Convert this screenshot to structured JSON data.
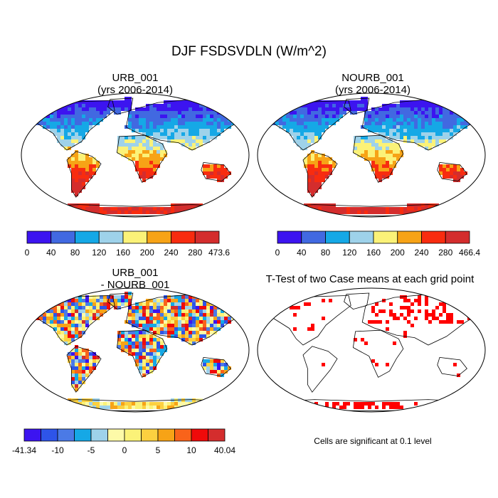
{
  "page_title": "DJF FSDSVDLN (W/m^2)",
  "footnote": "Cells are significant at 0.1 level",
  "chart_data": [
    {
      "type": "heatmap",
      "title": "URB_001",
      "subtitle": "(yrs 2006-2014)",
      "colorbar": {
        "labels": [
          "0",
          "40",
          "80",
          "120",
          "160",
          "200",
          "240",
          "280",
          "473.6"
        ],
        "colors": [
          "#3c14f0",
          "#4169e1",
          "#15a8e6",
          "#9ed2ea",
          "#fbf278",
          "#f7a316",
          "#f82c0f",
          "#d42d2d"
        ]
      }
    },
    {
      "type": "heatmap",
      "title": "NOURB_001",
      "subtitle": "(yrs 2006-2014)",
      "colorbar": {
        "labels": [
          "0",
          "40",
          "80",
          "120",
          "160",
          "200",
          "240",
          "280",
          "466.4"
        ],
        "colors": [
          "#3c14f0",
          "#4169e1",
          "#15a8e6",
          "#9ed2ea",
          "#fbf278",
          "#f7a316",
          "#f82c0f",
          "#d42d2d"
        ]
      }
    },
    {
      "type": "heatmap",
      "title": "URB_001",
      "subtitle": "- NOURB_001",
      "colorbar": {
        "labels": [
          "-41.34",
          "",
          "-10",
          "",
          "-5",
          "",
          "0",
          "",
          "5",
          "",
          "10",
          "",
          "40.04"
        ],
        "colors": [
          "#3c14f0",
          "#2e54e8",
          "#4b7ae6",
          "#15a8e6",
          "#9ed2ea",
          "#fdfaa8",
          "#fbf278",
          "#fcd040",
          "#f7a316",
          "#f9631a",
          "#f00a0a",
          "#d42d2d"
        ]
      }
    },
    {
      "type": "heatmap",
      "title": "T-Test of two Case means at each grid point",
      "subtitle": "",
      "significance_color": "#ff0000"
    }
  ]
}
